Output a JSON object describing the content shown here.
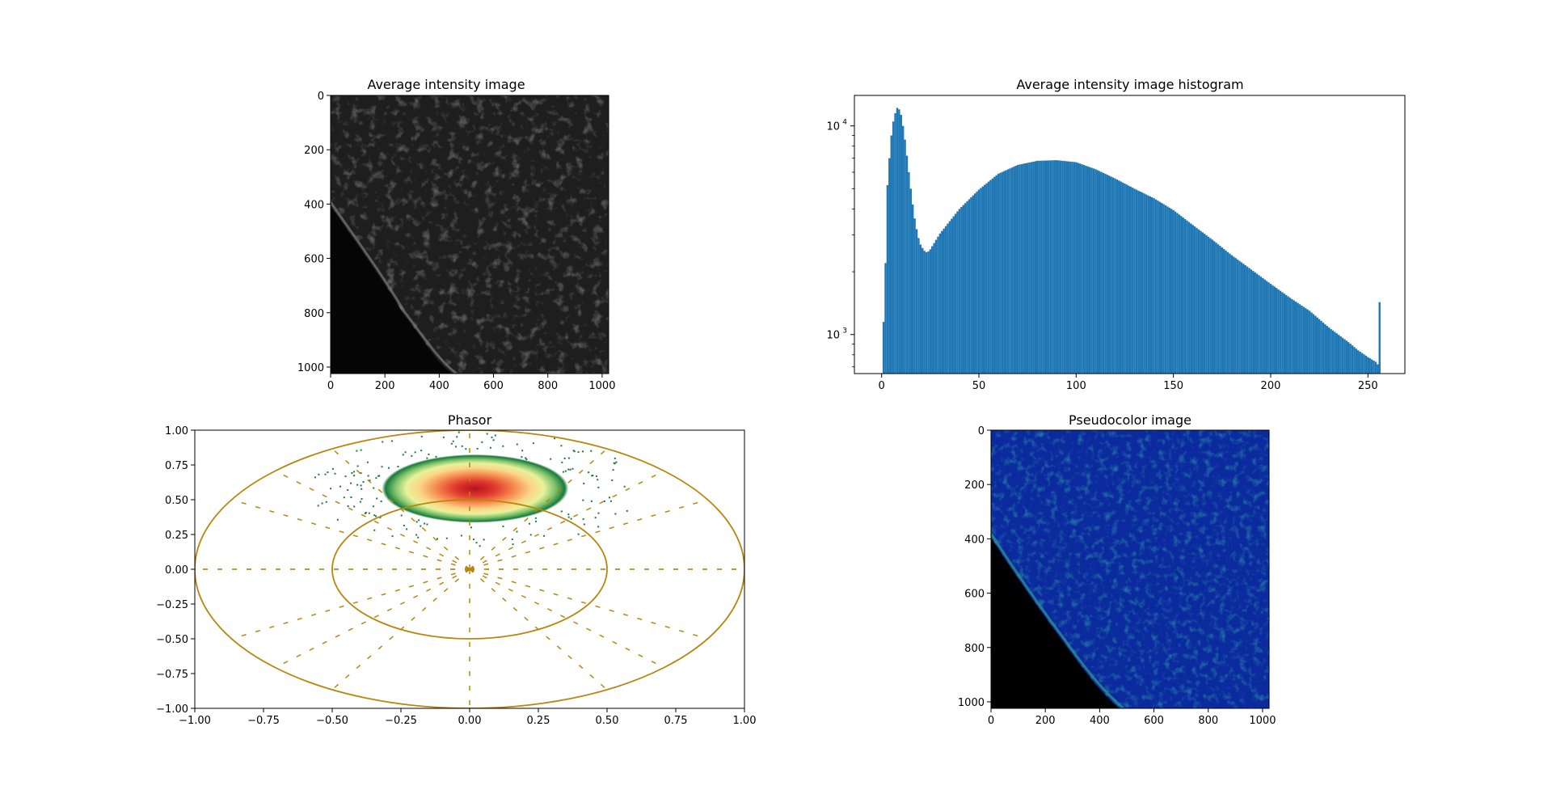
{
  "figure": {
    "colors": {
      "hist_bar": "#1f77b4",
      "circle": "#b8860b",
      "axes": "#000000",
      "cmap": [
        "#1a7a3c",
        "#7cc26b",
        "#e8f29a",
        "#fbd587",
        "#f06a3e",
        "#b5121f"
      ]
    }
  },
  "chart_data": [
    {
      "type": "heatmap",
      "title": "Average intensity image",
      "xlim": [
        0,
        1024
      ],
      "ylim": [
        1024,
        0
      ],
      "xticks": [
        0,
        200,
        400,
        600,
        800,
        1000
      ],
      "yticks": [
        0,
        200,
        400,
        600,
        800,
        1000
      ],
      "colormap": "gray"
    },
    {
      "type": "bar",
      "title": "Average intensity image histogram",
      "xlim": [
        -14,
        269
      ],
      "yscale": "log",
      "ylim": [
        650,
        14000
      ],
      "xticks": [
        0,
        50,
        100,
        150,
        200,
        250
      ],
      "yticks": [
        1000,
        10000
      ],
      "ytick_labels": [
        {
          "base": "10",
          "exp": "3"
        },
        {
          "base": "10",
          "exp": "4"
        }
      ],
      "bin_width": 1,
      "bins": [
        [
          1,
          1150
        ],
        [
          2,
          2200
        ],
        [
          3,
          5200
        ],
        [
          4,
          7000
        ],
        [
          5,
          9000
        ],
        [
          6,
          10500
        ],
        [
          7,
          11500
        ],
        [
          8,
          12200
        ],
        [
          9,
          12000
        ],
        [
          10,
          11300
        ],
        [
          11,
          10000
        ],
        [
          12,
          8600
        ],
        [
          13,
          7200
        ],
        [
          14,
          6000
        ],
        [
          15,
          5000
        ],
        [
          16,
          4200
        ],
        [
          17,
          3600
        ],
        [
          18,
          3200
        ],
        [
          19,
          2900
        ],
        [
          20,
          2700
        ],
        [
          21,
          2600
        ],
        [
          22,
          2520
        ],
        [
          23,
          2480
        ],
        [
          24,
          2500
        ],
        [
          25,
          2560
        ],
        [
          30,
          3050
        ],
        [
          40,
          4000
        ],
        [
          50,
          4950
        ],
        [
          60,
          5900
        ],
        [
          70,
          6500
        ],
        [
          80,
          6800
        ],
        [
          90,
          6850
        ],
        [
          100,
          6700
        ],
        [
          110,
          6200
        ],
        [
          120,
          5600
        ],
        [
          130,
          5000
        ],
        [
          140,
          4500
        ],
        [
          150,
          3950
        ],
        [
          160,
          3350
        ],
        [
          170,
          2850
        ],
        [
          180,
          2400
        ],
        [
          190,
          2050
        ],
        [
          200,
          1750
        ],
        [
          210,
          1500
        ],
        [
          220,
          1300
        ],
        [
          230,
          1080
        ],
        [
          240,
          920
        ],
        [
          245,
          840
        ],
        [
          250,
          780
        ],
        [
          254,
          740
        ],
        [
          255,
          720
        ],
        [
          256,
          1430
        ]
      ]
    },
    {
      "type": "scatter",
      "title": "Phasor",
      "xlim": [
        -1.0,
        1.0
      ],
      "ylim": [
        -1.0,
        1.0
      ],
      "xticks": [
        -1.0,
        -0.75,
        -0.5,
        -0.25,
        0.0,
        0.25,
        0.5,
        0.75,
        1.0
      ],
      "yticks": [
        -1.0,
        -0.75,
        -0.5,
        -0.25,
        0.0,
        0.25,
        0.5,
        0.75,
        1.0
      ],
      "tick_labels": [
        "−1.00",
        "−0.75",
        "−0.50",
        "−0.25",
        "0.00",
        "0.25",
        "0.50",
        "0.75",
        "1.00"
      ],
      "density_center": [
        0.02,
        0.58
      ],
      "density_spread": [
        0.2,
        0.14
      ],
      "circles": [
        {
          "center": [
            0,
            0
          ],
          "radius": 1.0
        },
        {
          "center": [
            0,
            0
          ],
          "radius": 0.5
        }
      ],
      "radial_lines_deg": [
        0,
        30,
        45,
        60,
        90,
        120,
        135,
        150,
        180
      ]
    },
    {
      "type": "heatmap",
      "title": "Pseudocolor image",
      "xlim": [
        0,
        1024
      ],
      "ylim": [
        1024,
        0
      ],
      "xticks": [
        0,
        200,
        400,
        600,
        800,
        1000
      ],
      "yticks": [
        0,
        200,
        400,
        600,
        800,
        1000
      ],
      "colormap": "blue-green pseudocolor"
    }
  ]
}
